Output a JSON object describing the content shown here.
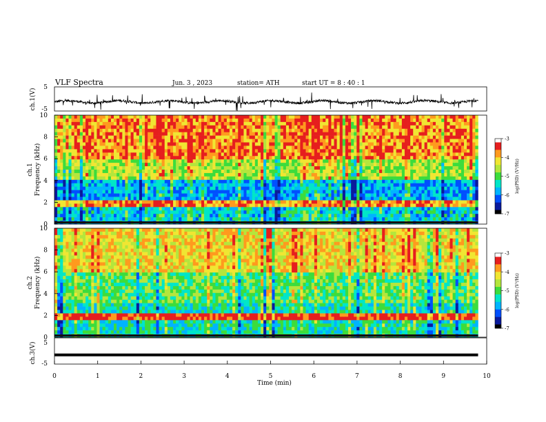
{
  "header": {
    "title": "VLF  Spectra",
    "date": "Jun. 3  , 2023",
    "station": "station= ATH",
    "start": "start  UT  =   8  : 40 : 1"
  },
  "chart_data": [
    {
      "type": "line",
      "panel": "ch1-waveform",
      "ylabel": "ch.1(V)",
      "yticks": [
        "5",
        "-5"
      ],
      "ylim": [
        -5,
        5
      ],
      "xlim": [
        0,
        10
      ],
      "description_values": {
        "baseline_v": -1.2,
        "spread_v": 1.0,
        "end_min": 9.8
      }
    },
    {
      "type": "heatmap",
      "panel": "ch1-spectrogram",
      "ylabel": "ch.1\nFrequency (kHz)",
      "ylabel_lines": [
        "ch.1",
        "Frequency  (kHz)"
      ],
      "yticks": [
        "0",
        "2",
        "4",
        "6",
        "8",
        "10"
      ],
      "ylim": [
        0,
        10
      ],
      "xlim": [
        0,
        10
      ],
      "data_end_min": 9.8,
      "colorbar": {
        "label": "log(PSD) (V²/Hz)",
        "ticks": [
          "-3",
          "-4",
          "-5",
          "-6",
          "-7"
        ],
        "range": [
          -7,
          -3
        ]
      }
    },
    {
      "type": "heatmap",
      "panel": "ch2-spectrogram",
      "ylabel": "ch.2\nFrequency (kHz)",
      "ylabel_lines": [
        "ch.2",
        "Frequency  (kHz)"
      ],
      "yticks": [
        "0",
        "2",
        "4",
        "6",
        "8",
        "10"
      ],
      "ylim": [
        0,
        10
      ],
      "xlim": [
        0,
        10
      ],
      "data_end_min": 9.8,
      "colorbar": {
        "label": "log(PSD) (V²/Hz)",
        "ticks": [
          "-3",
          "-4",
          "-5",
          "-6",
          "-7"
        ],
        "range": [
          -7,
          -3
        ]
      }
    },
    {
      "type": "line",
      "panel": "ch3-waveform",
      "ylabel": "ch.3(V)",
      "yticks": [
        "5",
        "-5"
      ],
      "ylim": [
        -5,
        5
      ],
      "xlim": [
        0,
        10
      ],
      "xlabel": "Time  (min)",
      "xticks": [
        "0",
        "1",
        "2",
        "3",
        "4",
        "5",
        "6",
        "7",
        "8",
        "9",
        "10"
      ],
      "description_values": {
        "level_v": -1.5,
        "end_min": 9.8
      }
    }
  ],
  "colors": {
    "colormap": [
      "#000000",
      "#0a1a9c",
      "#0050ff",
      "#00b4ff",
      "#00e6c8",
      "#3cdc3c",
      "#b4e63c",
      "#f0e632",
      "#ff9a1e",
      "#e61e1e",
      "#ffffff"
    ]
  }
}
